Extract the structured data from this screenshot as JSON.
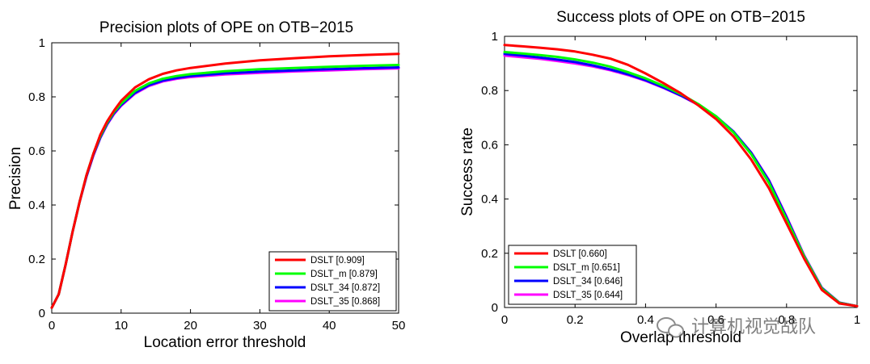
{
  "chart_data": [
    {
      "id": "left",
      "type": "line",
      "title": "Precision plots of OPE on OTB−2015",
      "xlabel": "Location error threshold",
      "ylabel": "Precision",
      "xlim": [
        0,
        50
      ],
      "ylim": [
        0,
        1
      ],
      "xticks": [
        0,
        10,
        20,
        30,
        40,
        50
      ],
      "yticks": [
        0,
        0.2,
        0.4,
        0.6,
        0.8,
        1
      ],
      "xtick_labels": [
        "0",
        "10",
        "20",
        "30",
        "40",
        "50"
      ],
      "ytick_labels": [
        "0",
        "0.2",
        "0.4",
        "0.6",
        "0.8",
        "1"
      ],
      "grid": false,
      "legend_position": "bottom-right",
      "x": [
        0,
        1,
        2,
        3,
        4,
        5,
        6,
        7,
        8,
        9,
        10,
        12,
        14,
        16,
        18,
        20,
        25,
        30,
        35,
        40,
        45,
        50
      ],
      "series": [
        {
          "name": "DSLT",
          "label": "DSLT [0.909]",
          "color": "#ff0000",
          "values": [
            0.02,
            0.07,
            0.18,
            0.3,
            0.41,
            0.51,
            0.59,
            0.66,
            0.71,
            0.75,
            0.785,
            0.835,
            0.865,
            0.885,
            0.898,
            0.907,
            0.923,
            0.935,
            0.943,
            0.95,
            0.955,
            0.959
          ]
        },
        {
          "name": "DSLT_m",
          "label": "DSLT_m [0.879]",
          "color": "#00ff00",
          "values": [
            0.02,
            0.07,
            0.18,
            0.3,
            0.41,
            0.51,
            0.59,
            0.655,
            0.705,
            0.745,
            0.775,
            0.822,
            0.85,
            0.867,
            0.877,
            0.884,
            0.895,
            0.902,
            0.907,
            0.911,
            0.915,
            0.918
          ]
        },
        {
          "name": "DSLT_34",
          "label": "DSLT_34 [0.872]",
          "color": "#0000ff",
          "values": [
            0.02,
            0.07,
            0.18,
            0.3,
            0.41,
            0.505,
            0.585,
            0.65,
            0.7,
            0.74,
            0.77,
            0.815,
            0.843,
            0.86,
            0.87,
            0.877,
            0.887,
            0.893,
            0.898,
            0.902,
            0.906,
            0.909
          ]
        },
        {
          "name": "DSLT_35",
          "label": "DSLT_35 [0.868]",
          "color": "#ff00ff",
          "values": [
            0.02,
            0.07,
            0.18,
            0.3,
            0.41,
            0.505,
            0.583,
            0.648,
            0.698,
            0.737,
            0.767,
            0.812,
            0.84,
            0.857,
            0.867,
            0.873,
            0.883,
            0.889,
            0.894,
            0.898,
            0.902,
            0.905
          ]
        }
      ]
    },
    {
      "id": "right",
      "type": "line",
      "title": "Success plots of OPE on OTB−2015",
      "xlabel": "Overlap threshold",
      "ylabel": "Success rate",
      "xlim": [
        0,
        1
      ],
      "ylim": [
        0,
        1
      ],
      "xticks": [
        0,
        0.2,
        0.4,
        0.6,
        0.8,
        1
      ],
      "yticks": [
        0,
        0.2,
        0.4,
        0.6,
        0.8,
        1
      ],
      "xtick_labels": [
        "0",
        "0.2",
        "0.4",
        "0.6",
        "0.8",
        "1"
      ],
      "ytick_labels": [
        "0",
        "0.2",
        "0.4",
        "0.6",
        "0.8",
        "1"
      ],
      "grid": false,
      "legend_position": "bottom-left",
      "x": [
        0,
        0.05,
        0.1,
        0.15,
        0.2,
        0.25,
        0.3,
        0.35,
        0.4,
        0.45,
        0.5,
        0.55,
        0.6,
        0.65,
        0.7,
        0.75,
        0.8,
        0.85,
        0.9,
        0.95,
        1.0
      ],
      "series": [
        {
          "name": "DSLT",
          "label": "DSLT [0.660]",
          "color": "#ff0000",
          "values": [
            0.968,
            0.963,
            0.958,
            0.952,
            0.944,
            0.932,
            0.918,
            0.895,
            0.863,
            0.828,
            0.79,
            0.745,
            0.695,
            0.63,
            0.545,
            0.44,
            0.31,
            0.18,
            0.065,
            0.015,
            0.005
          ]
        },
        {
          "name": "DSLT_m",
          "label": "DSLT_m [0.651]",
          "color": "#00ff00",
          "values": [
            0.942,
            0.937,
            0.931,
            0.924,
            0.915,
            0.903,
            0.888,
            0.868,
            0.845,
            0.818,
            0.787,
            0.75,
            0.705,
            0.645,
            0.565,
            0.46,
            0.325,
            0.188,
            0.07,
            0.017,
            0.005
          ]
        },
        {
          "name": "DSLT_34",
          "label": "DSLT_34 [0.646]",
          "color": "#0000ff",
          "values": [
            0.935,
            0.929,
            0.922,
            0.914,
            0.905,
            0.893,
            0.878,
            0.86,
            0.838,
            0.812,
            0.782,
            0.748,
            0.705,
            0.648,
            0.57,
            0.468,
            0.332,
            0.19,
            0.072,
            0.018,
            0.005
          ]
        },
        {
          "name": "DSLT_35",
          "label": "DSLT_35 [0.644]",
          "color": "#ff00ff",
          "values": [
            0.929,
            0.923,
            0.917,
            0.909,
            0.9,
            0.889,
            0.875,
            0.857,
            0.836,
            0.81,
            0.781,
            0.747,
            0.704,
            0.648,
            0.571,
            0.47,
            0.335,
            0.192,
            0.073,
            0.018,
            0.005
          ]
        }
      ]
    }
  ],
  "watermark": {
    "icon": "wechat-icon",
    "text": "计算机视觉战队"
  }
}
